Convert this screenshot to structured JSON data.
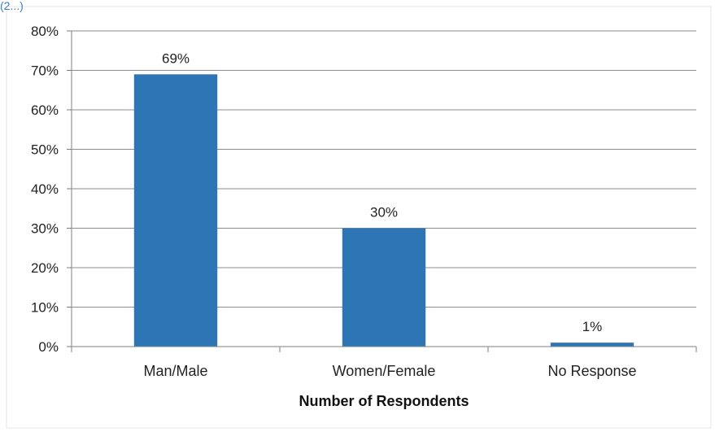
{
  "header_fragment": "(2...)",
  "chart_data": {
    "type": "bar",
    "categories": [
      "Man/Male",
      "Women/Female",
      "No Response"
    ],
    "values": [
      69,
      30,
      1
    ],
    "data_labels": [
      "69%",
      "30%",
      "1%"
    ],
    "xlabel": "Number of Respondents",
    "ylabel": "",
    "ylim": [
      0,
      80
    ],
    "yticks": [
      "0%",
      "10%",
      "20%",
      "30%",
      "40%",
      "50%",
      "60%",
      "70%",
      "80%"
    ],
    "grid": true,
    "legend": "none",
    "bar_color": "#2e75b6",
    "grid_color": "#8c8c8c"
  }
}
